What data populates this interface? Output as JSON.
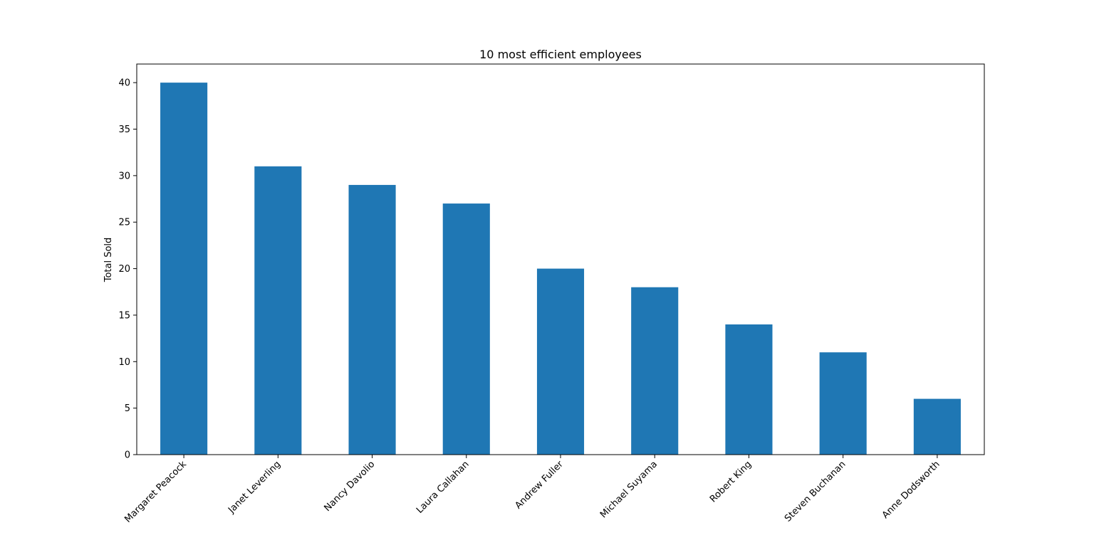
{
  "chart_data": {
    "type": "bar",
    "title": "10 most efficient employees",
    "xlabel": "",
    "ylabel": "Total Sold",
    "categories": [
      "Margaret Peacock",
      "Janet Leverling",
      "Nancy Davolio",
      "Laura Callahan",
      "Andrew Fuller",
      "Michael Suyama",
      "Robert King",
      "Steven Buchanan",
      "Anne Dodsworth"
    ],
    "values": [
      40,
      31,
      29,
      27,
      20,
      18,
      14,
      11,
      6
    ],
    "yticks": [
      0,
      5,
      10,
      15,
      20,
      25,
      30,
      35,
      40
    ],
    "ylim": [
      0,
      42
    ],
    "bar_color": "#1f77b4",
    "grid": false,
    "legend": "none"
  }
}
